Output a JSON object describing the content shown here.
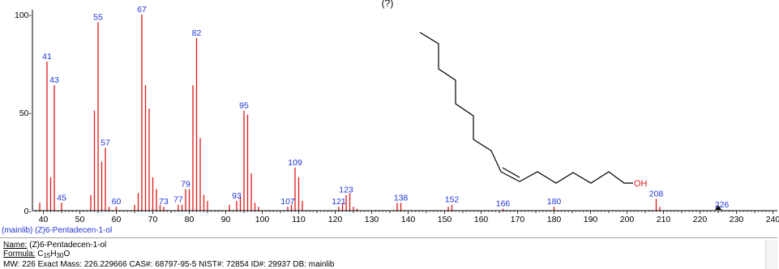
{
  "title_fragment": "(?)",
  "chart_data": {
    "type": "bar",
    "title": "",
    "xlabel": "",
    "ylabel": "",
    "xlim": [
      38,
      240
    ],
    "ylim": [
      0,
      100
    ],
    "x_ticks": [
      40,
      50,
      60,
      70,
      80,
      90,
      100,
      110,
      120,
      130,
      140,
      150,
      160,
      170,
      180,
      190,
      200,
      210,
      220,
      230,
      240
    ],
    "x_tick_labels": [
      "40",
      "50",
      "60",
      "70",
      "80",
      "90",
      "100",
      "110",
      "120",
      "130",
      "140",
      "150",
      "160",
      "170",
      "180",
      "190",
      "200",
      "210",
      "220",
      "230",
      "240"
    ],
    "y_ticks": [
      0,
      50,
      100
    ],
    "y_tick_labels": [
      "0-",
      "50-",
      "100-"
    ],
    "peaks": [
      {
        "mz": 39,
        "intensity": 4
      },
      {
        "mz": 41,
        "intensity": 76,
        "label": "41"
      },
      {
        "mz": 42,
        "intensity": 17
      },
      {
        "mz": 43,
        "intensity": 64,
        "label": "43"
      },
      {
        "mz": 45,
        "intensity": 4,
        "label": "45"
      },
      {
        "mz": 53,
        "intensity": 8
      },
      {
        "mz": 54,
        "intensity": 51
      },
      {
        "mz": 55,
        "intensity": 96,
        "label": "55"
      },
      {
        "mz": 56,
        "intensity": 25
      },
      {
        "mz": 57,
        "intensity": 32,
        "label": "57"
      },
      {
        "mz": 58,
        "intensity": 2
      },
      {
        "mz": 60,
        "intensity": 2,
        "label": "60"
      },
      {
        "mz": 65,
        "intensity": 3
      },
      {
        "mz": 66,
        "intensity": 9
      },
      {
        "mz": 67,
        "intensity": 100,
        "label": "67"
      },
      {
        "mz": 68,
        "intensity": 64
      },
      {
        "mz": 69,
        "intensity": 52
      },
      {
        "mz": 70,
        "intensity": 17
      },
      {
        "mz": 71,
        "intensity": 11
      },
      {
        "mz": 72,
        "intensity": 3
      },
      {
        "mz": 73,
        "intensity": 2,
        "label": "73"
      },
      {
        "mz": 77,
        "intensity": 3,
        "label": "77"
      },
      {
        "mz": 78,
        "intensity": 3
      },
      {
        "mz": 79,
        "intensity": 11,
        "label": "79"
      },
      {
        "mz": 80,
        "intensity": 11
      },
      {
        "mz": 81,
        "intensity": 64
      },
      {
        "mz": 82,
        "intensity": 88,
        "label": "82"
      },
      {
        "mz": 83,
        "intensity": 37
      },
      {
        "mz": 84,
        "intensity": 8
      },
      {
        "mz": 85,
        "intensity": 5
      },
      {
        "mz": 91,
        "intensity": 3
      },
      {
        "mz": 93,
        "intensity": 5,
        "label": "93"
      },
      {
        "mz": 94,
        "intensity": 7
      },
      {
        "mz": 95,
        "intensity": 51,
        "label": "95"
      },
      {
        "mz": 96,
        "intensity": 49
      },
      {
        "mz": 97,
        "intensity": 19
      },
      {
        "mz": 98,
        "intensity": 4
      },
      {
        "mz": 99,
        "intensity": 2
      },
      {
        "mz": 107,
        "intensity": 2,
        "label": "107"
      },
      {
        "mz": 108,
        "intensity": 3
      },
      {
        "mz": 109,
        "intensity": 22,
        "label": "109"
      },
      {
        "mz": 110,
        "intensity": 17
      },
      {
        "mz": 111,
        "intensity": 5
      },
      {
        "mz": 121,
        "intensity": 2,
        "label": "121"
      },
      {
        "mz": 122,
        "intensity": 4
      },
      {
        "mz": 123,
        "intensity": 8,
        "label": "123"
      },
      {
        "mz": 124,
        "intensity": 9
      },
      {
        "mz": 125,
        "intensity": 2
      },
      {
        "mz": 126,
        "intensity": 1
      },
      {
        "mz": 137,
        "intensity": 4
      },
      {
        "mz": 138,
        "intensity": 4,
        "label": "138"
      },
      {
        "mz": 151,
        "intensity": 2
      },
      {
        "mz": 152,
        "intensity": 3,
        "label": "152"
      },
      {
        "mz": 166,
        "intensity": 1,
        "label": "166"
      },
      {
        "mz": 180,
        "intensity": 2,
        "label": "180"
      },
      {
        "mz": 208,
        "intensity": 6,
        "label": "208"
      },
      {
        "mz": 209,
        "intensity": 2
      },
      {
        "mz": 226,
        "intensity": 0.5,
        "label": "226"
      }
    ],
    "molecular_ion_marker_mz": 225,
    "colors": {
      "peaks": "#e01818",
      "labels": "#1f35d6",
      "axis": "#000000",
      "oh": "#e01818"
    }
  },
  "structure": {
    "hydroxyl_label": "OH"
  },
  "source_caption": "(mainlib) (Z)6-Pentadecen-1-ol",
  "info": {
    "name_key": "Name:",
    "name_value": "(Z)6-Pentadecen-1-ol",
    "formula_key": "Formula:",
    "formula_parts": [
      "C",
      "15",
      "H",
      "30",
      "O"
    ],
    "line3_segments": [
      {
        "key": "MW:",
        "value": "226"
      },
      {
        "key": "Exact Mass:",
        "value": "226.229666"
      },
      {
        "key": "CAS#:",
        "value": "68797-95-5"
      },
      {
        "key": "NIST#:",
        "value": "72854"
      },
      {
        "key": "ID#:",
        "value": "29937"
      },
      {
        "key": "DB:",
        "value": "mainlib"
      }
    ]
  }
}
